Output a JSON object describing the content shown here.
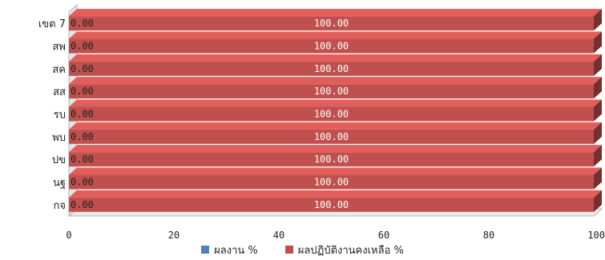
{
  "chart_data": {
    "type": "bar",
    "orientation": "horizontal",
    "stacked": true,
    "three_d": true,
    "categories": [
      "เขต 7",
      "สพ",
      "สค",
      "สส",
      "รบ",
      "พบ",
      "ปข",
      "นฐ",
      "กจ"
    ],
    "series": [
      {
        "name": "ผลงาน %",
        "color": "#4f81bd",
        "values": [
          0,
          0,
          0,
          0,
          0,
          0,
          0,
          0,
          0
        ],
        "labels": [
          "0.00",
          "0.00",
          "0.00",
          "0.00",
          "0.00",
          "0.00",
          "0.00",
          "0.00",
          "0.00"
        ]
      },
      {
        "name": "ผลปฏิบัติงานคงเหลือ %",
        "color": "#c0504d",
        "values": [
          100,
          100,
          100,
          100,
          100,
          100,
          100,
          100,
          100
        ],
        "labels": [
          "100.00",
          "100.00",
          "100.00",
          "100.00",
          "100.00",
          "100.00",
          "100.00",
          "100.00",
          "100.00"
        ]
      }
    ],
    "x_ticks": [
      "0",
      "20",
      "40",
      "60",
      "80",
      "100"
    ],
    "xlim": [
      0,
      100
    ],
    "legend_position": "bottom",
    "grid": false
  }
}
